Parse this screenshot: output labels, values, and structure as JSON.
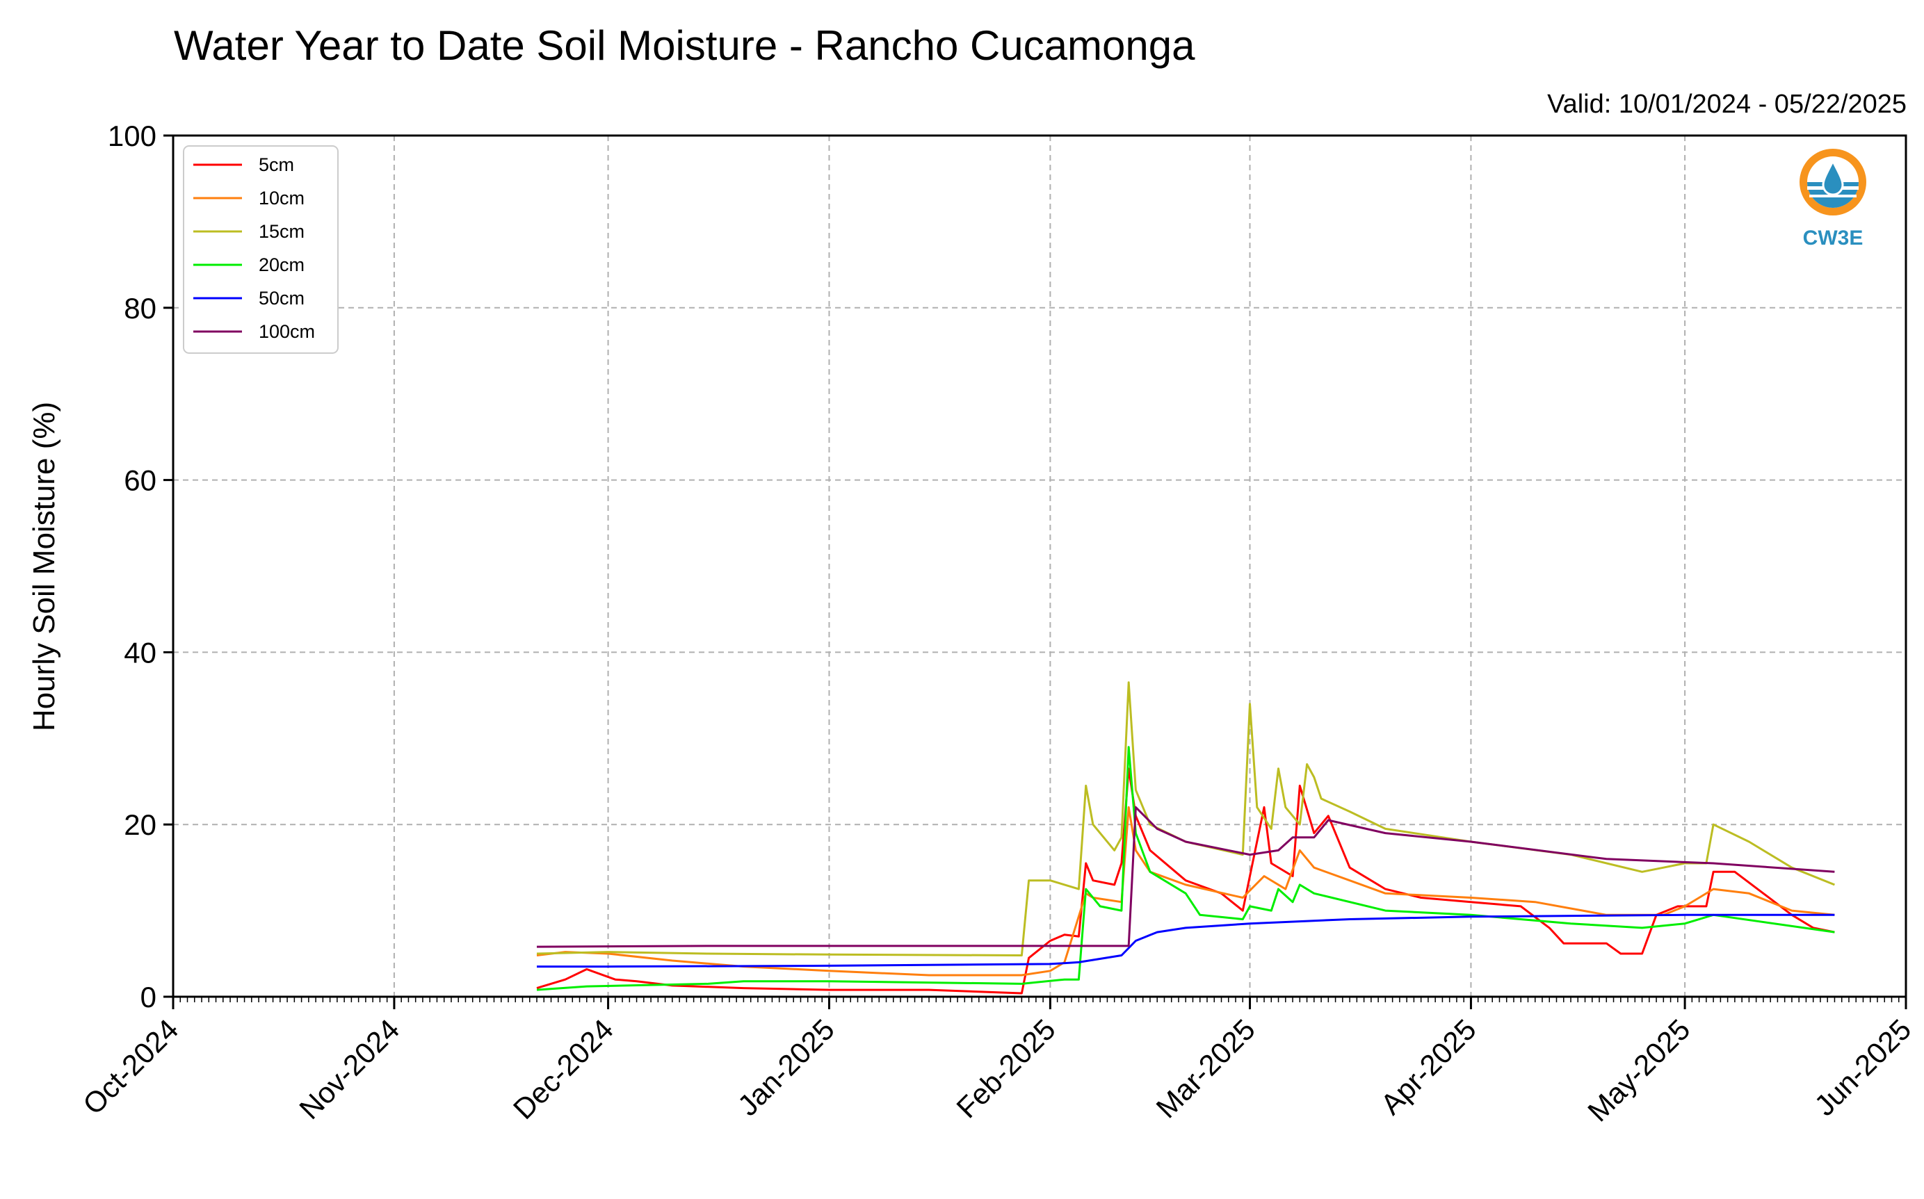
{
  "colors": {
    "5cm": "#ff0000",
    "10cm": "#ff7f0e",
    "15cm": "#bcbd22",
    "20cm": "#00ee00",
    "50cm": "#0000ff",
    "100cm": "#800060",
    "grid": "#b0b0b0",
    "logo_orange": "#f7941d",
    "logo_blue": "#2a8fbf"
  },
  "logo": {
    "icon": "cw3e-water-drop-icon",
    "text": "CW3E"
  },
  "chart_data": {
    "type": "line",
    "title": "Water Year to Date Soil Moisture - Rancho Cucamonga",
    "subtitle": "Valid: 10/01/2024 - 05/22/2025",
    "xlabel": "",
    "ylabel": "Hourly Soil Moisture (%)",
    "xlim": [
      "2024-10-01",
      "2025-06-01"
    ],
    "ylim": [
      0,
      100
    ],
    "yticks": [
      0,
      20,
      40,
      60,
      80,
      100
    ],
    "ytick_labels": [
      "0",
      "20",
      "40",
      "60",
      "80",
      "100"
    ],
    "xticks": [
      "2024-10-01",
      "2024-11-01",
      "2024-12-01",
      "2025-01-01",
      "2025-02-01",
      "2025-03-01",
      "2025-04-01",
      "2025-05-01",
      "2025-06-01"
    ],
    "xtick_labels": [
      "Oct-2024",
      "Nov-2024",
      "Dec-2024",
      "Jan-2025",
      "Feb-2025",
      "Mar-2025",
      "Apr-2025",
      "May-2025",
      "Jun-2025"
    ],
    "grid": true,
    "legend_position": "top-left",
    "series": [
      {
        "name": "5cm",
        "color": "#ff0000",
        "points": [
          [
            "2024-11-21",
            1.0
          ],
          [
            "2024-11-25",
            2.0
          ],
          [
            "2024-11-28",
            3.2
          ],
          [
            "2024-12-02",
            2.0
          ],
          [
            "2024-12-05",
            1.8
          ],
          [
            "2024-12-10",
            1.3
          ],
          [
            "2024-12-20",
            1.0
          ],
          [
            "2025-01-01",
            0.8
          ],
          [
            "2025-01-15",
            0.8
          ],
          [
            "2025-01-28",
            0.4
          ],
          [
            "2025-01-29",
            4.5
          ],
          [
            "2025-02-01",
            6.5
          ],
          [
            "2025-02-03",
            7.2
          ],
          [
            "2025-02-05",
            7.0
          ],
          [
            "2025-02-06",
            15.5
          ],
          [
            "2025-02-07",
            13.5
          ],
          [
            "2025-02-10",
            13.0
          ],
          [
            "2025-02-11",
            15.5
          ],
          [
            "2025-02-12",
            26.5
          ],
          [
            "2025-02-13",
            21.0
          ],
          [
            "2025-02-15",
            17.0
          ],
          [
            "2025-02-20",
            13.5
          ],
          [
            "2025-02-25",
            12.0
          ],
          [
            "2025-02-28",
            10.0
          ],
          [
            "2025-03-01",
            14.0
          ],
          [
            "2025-03-03",
            22.0
          ],
          [
            "2025-03-04",
            15.5
          ],
          [
            "2025-03-07",
            14.0
          ],
          [
            "2025-03-08",
            24.5
          ],
          [
            "2025-03-10",
            19.0
          ],
          [
            "2025-03-12",
            21.0
          ],
          [
            "2025-03-15",
            15.0
          ],
          [
            "2025-03-20",
            12.5
          ],
          [
            "2025-03-25",
            11.5
          ],
          [
            "2025-04-01",
            11.0
          ],
          [
            "2025-04-08",
            10.5
          ],
          [
            "2025-04-12",
            8.0
          ],
          [
            "2025-04-14",
            6.2
          ],
          [
            "2025-04-20",
            6.2
          ],
          [
            "2025-04-22",
            5.0
          ],
          [
            "2025-04-25",
            5.0
          ],
          [
            "2025-04-27",
            9.5
          ],
          [
            "2025-04-30",
            10.5
          ],
          [
            "2025-05-04",
            10.5
          ],
          [
            "2025-05-05",
            14.5
          ],
          [
            "2025-05-08",
            14.5
          ],
          [
            "2025-05-12",
            12.0
          ],
          [
            "2025-05-16",
            9.5
          ],
          [
            "2025-05-19",
            8.0
          ],
          [
            "2025-05-22",
            7.5
          ]
        ]
      },
      {
        "name": "10cm",
        "color": "#ff7f0e",
        "points": [
          [
            "2024-11-21",
            4.8
          ],
          [
            "2024-11-25",
            5.2
          ],
          [
            "2024-12-01",
            5.0
          ],
          [
            "2024-12-10",
            4.2
          ],
          [
            "2024-12-20",
            3.5
          ],
          [
            "2025-01-01",
            3.0
          ],
          [
            "2025-01-15",
            2.5
          ],
          [
            "2025-01-28",
            2.5
          ],
          [
            "2025-02-01",
            3.0
          ],
          [
            "2025-02-03",
            4.0
          ],
          [
            "2025-02-06",
            12.0
          ],
          [
            "2025-02-07",
            11.5
          ],
          [
            "2025-02-11",
            11.0
          ],
          [
            "2025-02-12",
            22.0
          ],
          [
            "2025-02-13",
            17.0
          ],
          [
            "2025-02-15",
            14.5
          ],
          [
            "2025-02-20",
            13.0
          ],
          [
            "2025-02-28",
            11.5
          ],
          [
            "2025-03-03",
            14.0
          ],
          [
            "2025-03-06",
            12.5
          ],
          [
            "2025-03-08",
            17.0
          ],
          [
            "2025-03-10",
            15.0
          ],
          [
            "2025-03-15",
            13.5
          ],
          [
            "2025-03-20",
            12.0
          ],
          [
            "2025-04-01",
            11.5
          ],
          [
            "2025-04-10",
            11.0
          ],
          [
            "2025-04-20",
            9.5
          ],
          [
            "2025-04-28",
            9.5
          ],
          [
            "2025-05-01",
            10.5
          ],
          [
            "2025-05-05",
            12.5
          ],
          [
            "2025-05-10",
            12.0
          ],
          [
            "2025-05-16",
            10.0
          ],
          [
            "2025-05-22",
            9.5
          ]
        ]
      },
      {
        "name": "15cm",
        "color": "#bcbd22",
        "points": [
          [
            "2024-11-21",
            5.0
          ],
          [
            "2024-12-01",
            5.2
          ],
          [
            "2024-12-15",
            5.0
          ],
          [
            "2025-01-01",
            4.9
          ],
          [
            "2025-01-28",
            4.8
          ],
          [
            "2025-01-29",
            13.5
          ],
          [
            "2025-02-01",
            13.5
          ],
          [
            "2025-02-05",
            12.5
          ],
          [
            "2025-02-06",
            24.5
          ],
          [
            "2025-02-07",
            20.0
          ],
          [
            "2025-02-10",
            17.0
          ],
          [
            "2025-02-11",
            18.5
          ],
          [
            "2025-02-12",
            36.5
          ],
          [
            "2025-02-13",
            24.0
          ],
          [
            "2025-02-15",
            20.0
          ],
          [
            "2025-02-20",
            18.0
          ],
          [
            "2025-02-28",
            16.5
          ],
          [
            "2025-03-01",
            34.0
          ],
          [
            "2025-03-02",
            22.0
          ],
          [
            "2025-03-04",
            19.5
          ],
          [
            "2025-03-05",
            26.5
          ],
          [
            "2025-03-06",
            22.0
          ],
          [
            "2025-03-08",
            20.0
          ],
          [
            "2025-03-09",
            27.0
          ],
          [
            "2025-03-10",
            25.5
          ],
          [
            "2025-03-11",
            23.0
          ],
          [
            "2025-03-15",
            21.5
          ],
          [
            "2025-03-20",
            19.5
          ],
          [
            "2025-04-01",
            18.0
          ],
          [
            "2025-04-15",
            16.5
          ],
          [
            "2025-04-25",
            14.5
          ],
          [
            "2025-04-28",
            15.0
          ],
          [
            "2025-05-01",
            15.5
          ],
          [
            "2025-05-04",
            15.5
          ],
          [
            "2025-05-05",
            20.0
          ],
          [
            "2025-05-10",
            18.0
          ],
          [
            "2025-05-16",
            15.0
          ],
          [
            "2025-05-22",
            13.0
          ]
        ]
      },
      {
        "name": "20cm",
        "color": "#00ee00",
        "points": [
          [
            "2024-11-21",
            0.8
          ],
          [
            "2024-11-28",
            1.2
          ],
          [
            "2024-12-15",
            1.5
          ],
          [
            "2024-12-20",
            1.8
          ],
          [
            "2025-01-01",
            1.8
          ],
          [
            "2025-01-28",
            1.5
          ],
          [
            "2025-02-03",
            2.0
          ],
          [
            "2025-02-05",
            2.0
          ],
          [
            "2025-02-06",
            12.5
          ],
          [
            "2025-02-08",
            10.5
          ],
          [
            "2025-02-11",
            10.0
          ],
          [
            "2025-02-12",
            29.0
          ],
          [
            "2025-02-13",
            19.0
          ],
          [
            "2025-02-15",
            14.5
          ],
          [
            "2025-02-20",
            12.0
          ],
          [
            "2025-02-22",
            9.5
          ],
          [
            "2025-02-28",
            9.0
          ],
          [
            "2025-03-01",
            10.5
          ],
          [
            "2025-03-04",
            10.0
          ],
          [
            "2025-03-05",
            12.5
          ],
          [
            "2025-03-07",
            11.0
          ],
          [
            "2025-03-08",
            13.0
          ],
          [
            "2025-03-10",
            12.0
          ],
          [
            "2025-03-20",
            10.0
          ],
          [
            "2025-04-01",
            9.5
          ],
          [
            "2025-04-15",
            8.5
          ],
          [
            "2025-04-25",
            8.0
          ],
          [
            "2025-05-01",
            8.5
          ],
          [
            "2025-05-05",
            9.5
          ],
          [
            "2025-05-22",
            7.5
          ]
        ]
      },
      {
        "name": "50cm",
        "color": "#0000ff",
        "points": [
          [
            "2024-11-21",
            3.5
          ],
          [
            "2024-12-01",
            3.5
          ],
          [
            "2025-01-01",
            3.6
          ],
          [
            "2025-02-01",
            3.8
          ],
          [
            "2025-02-05",
            4.0
          ],
          [
            "2025-02-11",
            4.8
          ],
          [
            "2025-02-13",
            6.5
          ],
          [
            "2025-02-16",
            7.5
          ],
          [
            "2025-02-20",
            8.0
          ],
          [
            "2025-03-01",
            8.5
          ],
          [
            "2025-03-15",
            9.0
          ],
          [
            "2025-04-01",
            9.3
          ],
          [
            "2025-05-01",
            9.5
          ],
          [
            "2025-05-22",
            9.5
          ]
        ]
      },
      {
        "name": "100cm",
        "color": "#800060",
        "points": [
          [
            "2024-11-21",
            5.8
          ],
          [
            "2024-12-15",
            5.9
          ],
          [
            "2025-01-15",
            5.9
          ],
          [
            "2025-02-12",
            5.9
          ],
          [
            "2025-02-13",
            22.0
          ],
          [
            "2025-02-16",
            19.5
          ],
          [
            "2025-02-20",
            18.0
          ],
          [
            "2025-03-01",
            16.5
          ],
          [
            "2025-03-05",
            17.0
          ],
          [
            "2025-03-07",
            18.5
          ],
          [
            "2025-03-10",
            18.5
          ],
          [
            "2025-03-12",
            20.5
          ],
          [
            "2025-03-20",
            19.0
          ],
          [
            "2025-04-01",
            18.0
          ],
          [
            "2025-04-20",
            16.0
          ],
          [
            "2025-05-05",
            15.5
          ],
          [
            "2025-05-22",
            14.5
          ]
        ]
      }
    ]
  }
}
